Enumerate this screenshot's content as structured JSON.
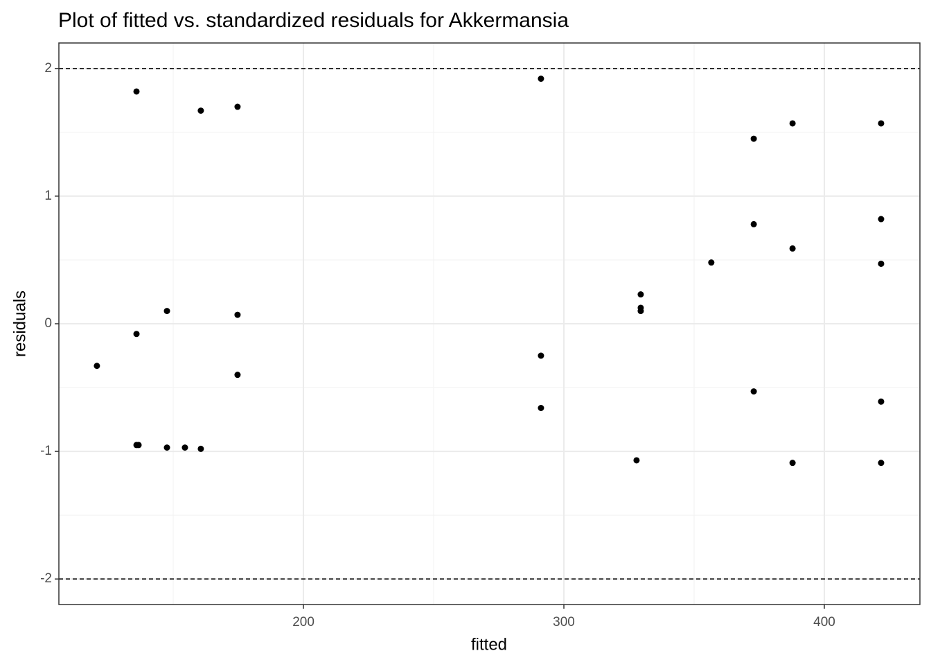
{
  "chart_data": {
    "type": "scatter",
    "title": "Plot of fitted vs. standardized residuals for Akkermansia",
    "x_label": "fitted",
    "y_label": "residuals",
    "x": [
      120.7,
      135.9,
      135.9,
      135.9,
      136.7,
      147.6,
      147.6,
      154.5,
      160.6,
      160.6,
      174.7,
      174.7,
      174.7,
      291.2,
      291.2,
      291.2,
      327.9,
      329.5,
      329.5,
      329.5,
      356.6,
      372.9,
      372.9,
      372.9,
      387.8,
      387.8,
      387.8,
      421.8,
      421.8,
      421.8,
      421.8,
      421.8
    ],
    "values": [
      -0.33,
      1.82,
      -0.08,
      -0.95,
      -0.95,
      0.1,
      -0.97,
      -0.97,
      1.67,
      -0.98,
      1.7,
      0.07,
      -0.4,
      1.92,
      -0.25,
      -0.66,
      -1.07,
      0.23,
      0.125,
      0.1,
      0.48,
      1.45,
      0.78,
      -0.53,
      1.57,
      0.59,
      -1.09,
      1.57,
      0.82,
      0.47,
      -0.61,
      -1.09
    ],
    "color": "#000000",
    "xlim": [
      106.1,
      436.7
    ],
    "ylim": [
      -2.2,
      2.2
    ],
    "xticks": [
      200,
      300,
      400
    ],
    "yticks": [
      -2,
      -1,
      0,
      1,
      2
    ],
    "x_minor_grid": [
      150,
      250,
      350
    ],
    "y_minor_grid": [
      -1.5,
      -0.5,
      0.5,
      1.5
    ],
    "grid": true,
    "hlines": [
      -2,
      2
    ]
  }
}
